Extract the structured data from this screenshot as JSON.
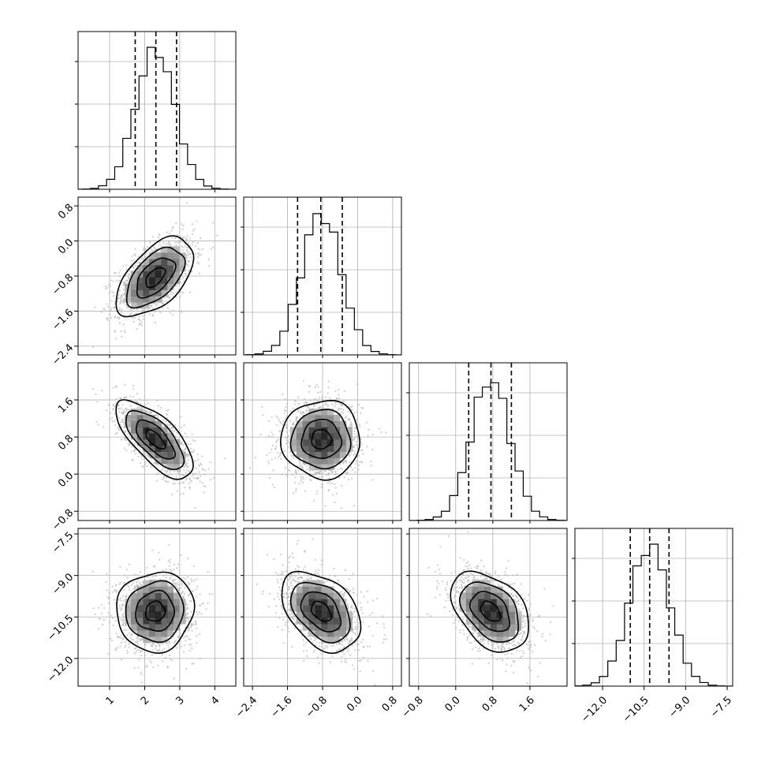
{
  "chart_data": {
    "type": "corner",
    "title": "",
    "grid": true,
    "parameters": [
      {
        "xlim": [
          0.1,
          4.6
        ],
        "ticks": [
          1,
          2,
          3,
          4
        ],
        "tick_labels": [
          "1",
          "2",
          "3",
          "4"
        ],
        "mean": 2.3,
        "sd": 0.55,
        "quantiles": [
          1.73,
          2.32,
          2.91
        ]
      },
      {
        "xlim": [
          -2.6,
          1.0
        ],
        "ticks": [
          -2.4,
          -1.6,
          -0.8,
          0.0,
          0.8
        ],
        "tick_labels": [
          "−2.4",
          "−1.6",
          "−0.8",
          "0.0",
          "0.8"
        ],
        "mean": -0.83,
        "sd": 0.45,
        "quantiles": [
          -1.37,
          -0.84,
          -0.35
        ]
      },
      {
        "xlim": [
          -1.0,
          2.4
        ],
        "ticks": [
          -0.8,
          0.0,
          0.8,
          1.6
        ],
        "tick_labels": [
          "−0.8",
          "0.0",
          "0.8",
          "1.6"
        ],
        "mean": 0.75,
        "sd": 0.42,
        "quantiles": [
          0.28,
          0.76,
          1.2
        ]
      },
      {
        "xlim": [
          -13.0,
          -7.3
        ],
        "ticks": [
          -12.0,
          -10.5,
          -9.0,
          -7.5
        ],
        "tick_labels": [
          "−12.0",
          "−10.5",
          "−9.0",
          "−7.5"
        ],
        "mean": -10.3,
        "sd": 0.72,
        "quantiles": [
          -11.0,
          -10.3,
          -9.6
        ]
      }
    ],
    "correlations": [
      [
        1,
        2,
        0.55
      ],
      [
        1,
        3,
        -0.7
      ],
      [
        1,
        4,
        0.05
      ],
      [
        2,
        3,
        0.0
      ],
      [
        2,
        4,
        -0.4
      ],
      [
        3,
        4,
        -0.4
      ]
    ],
    "contour_levels_sigma": [
      0.5,
      1.0,
      1.5,
      2.0
    ],
    "colors": {
      "line": "#000000",
      "points": "#b8b8b8",
      "grid": "#b0b0b0",
      "fill_dark": "#000000",
      "fill_light": "#ffffff"
    }
  }
}
